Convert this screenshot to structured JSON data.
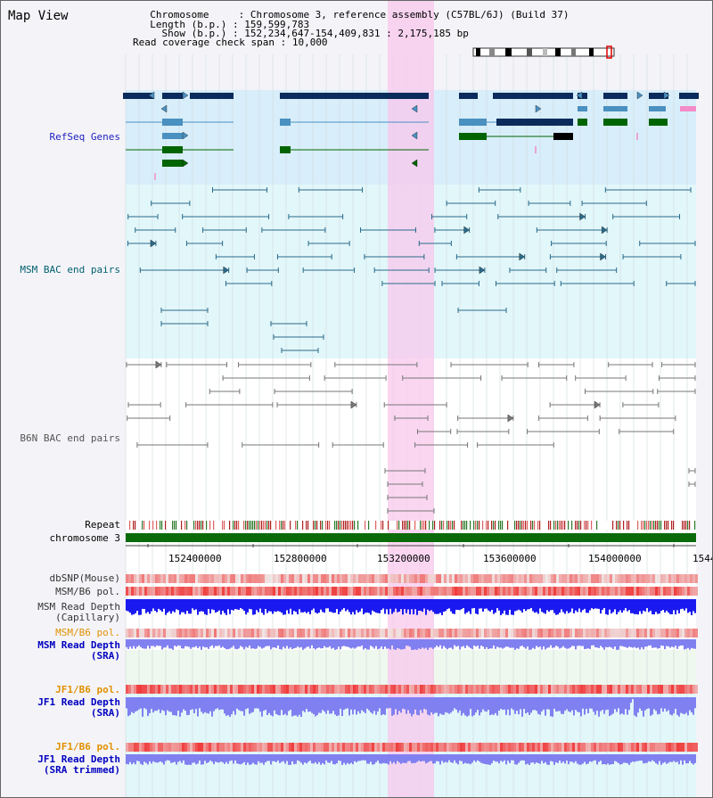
{
  "app_title": "Map View",
  "info": {
    "chromosome_label": "  Chromosome     ",
    "chromosome_value": ": Chromosome 3, reference assembly (C57BL/6J) (Build 37)",
    "length_label": "  Length (b.p.) ",
    "length_value": ": 159,599,783",
    "show_label": "    Show (b.p.) ",
    "show_value": ": 152,234,647-154,409,831 : 2,175,185 bp",
    "coverage_label": "Read coverage check span ",
    "coverage_value": ": 10,000"
  },
  "tracks": {
    "refseq": "RefSeq Genes",
    "msm_bac": "MSM BAC end pairs",
    "b6n_bac": "B6N BAC end pairs",
    "repeat": "Repeat",
    "chromosome": "chromosome 3",
    "dbsnp": "dbSNP(Mouse)",
    "msm_b6_pol_1": "MSM/B6 pol.",
    "msm_depth_cap_1": "MSM Read Depth",
    "msm_depth_cap_2": "(Capillary)",
    "msm_b6_pol_2": "MSM/B6 pol.",
    "msm_depth_sra_1": "MSM Read Depth",
    "msm_depth_sra_2": "(SRA)",
    "jf1_b6_pol_1": "JF1/B6 pol.",
    "jf1_depth_sra_1": "JF1 Read Depth",
    "jf1_depth_sra_2": "(SRA)",
    "jf1_b6_pol_2": "JF1/B6 pol.",
    "jf1_depth_trim_1": "JF1 Read Depth",
    "jf1_depth_trim_2": "(SRA trimmed)"
  },
  "axis": {
    "ticks": [
      "152400000",
      "152800000",
      "153200000",
      "153600000",
      "154000000",
      "1544"
    ]
  },
  "colors": {
    "refseq_label": "#2020c0",
    "msm_label": "#006070",
    "b6n_label": "#555555",
    "orange_label": "#e09000",
    "blue_label": "#0000c0",
    "gene_navy": "#0a2b5c",
    "gene_light": "#4a90c0",
    "gene_green": "#006400",
    "msm_pair": "#2a6a8a",
    "b6n_pair": "#777777",
    "highlight": "#f8c8ec",
    "depth_blue": "#1a1af0",
    "depth_light": "#8080f0",
    "snp_red": "#f05050"
  }
}
